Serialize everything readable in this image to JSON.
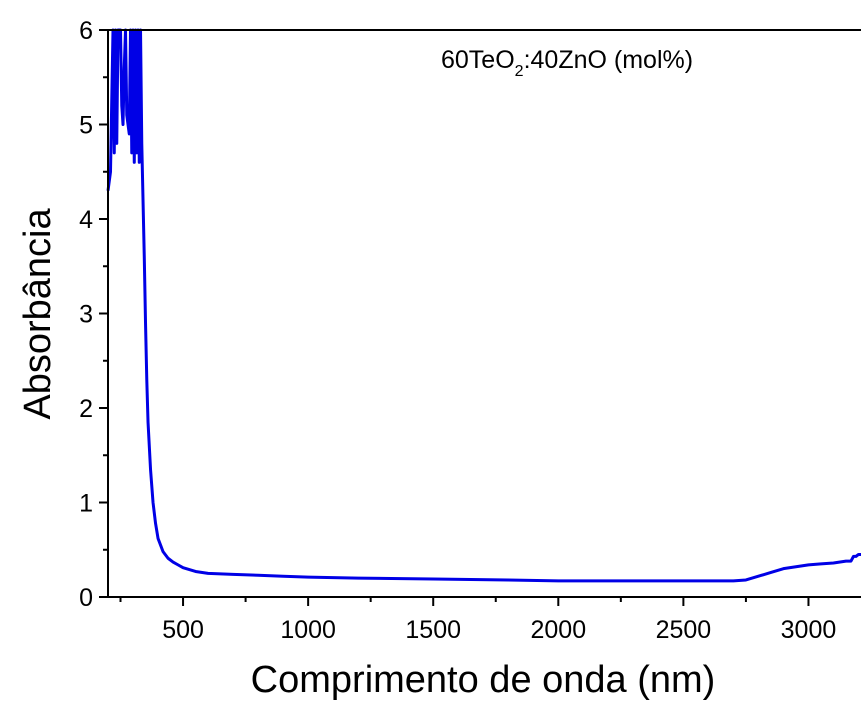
{
  "chart_data": {
    "type": "line",
    "xlabel": "Comprimento de onda (nm)",
    "ylabel": "Absorbância",
    "xlim": [
      200,
      3210
    ],
    "ylim": [
      0,
      6
    ],
    "xticks": [
      500,
      1000,
      1500,
      2000,
      2500,
      3000
    ],
    "yticks": [
      0,
      1,
      2,
      3,
      4,
      5,
      6
    ],
    "grid": false,
    "legend": "none",
    "annotation": {
      "main": "60TeO",
      "subscript": "2",
      "rest": ":40ZnO (mol%)"
    },
    "series": [
      {
        "color": "#0000e6",
        "x": [
          200,
          210,
          220,
          225,
          230,
          235,
          240,
          245,
          250,
          255,
          260,
          265,
          270,
          275,
          280,
          285,
          290,
          295,
          300,
          305,
          310,
          315,
          320,
          325,
          330,
          335,
          340,
          345,
          350,
          355,
          360,
          370,
          380,
          390,
          400,
          420,
          440,
          460,
          480,
          500,
          550,
          600,
          700,
          800,
          900,
          1000,
          1200,
          1500,
          1800,
          2000,
          2200,
          2500,
          2700,
          2750,
          2800,
          2850,
          2900,
          2950,
          3000,
          3050,
          3100,
          3150,
          3170,
          3180,
          3190,
          3200,
          3210
        ],
        "y": [
          4.3,
          4.5,
          6.0,
          4.7,
          6.0,
          4.8,
          6.0,
          6.0,
          6.0,
          5.2,
          5.0,
          5.6,
          6.0,
          5.1,
          5.0,
          4.9,
          6.0,
          4.7,
          6.0,
          4.6,
          6.0,
          4.7,
          6.0,
          4.6,
          6.0,
          4.8,
          4.2,
          3.6,
          2.9,
          2.3,
          1.85,
          1.35,
          1.0,
          0.78,
          0.62,
          0.48,
          0.41,
          0.37,
          0.34,
          0.31,
          0.27,
          0.25,
          0.24,
          0.23,
          0.22,
          0.21,
          0.2,
          0.19,
          0.18,
          0.17,
          0.17,
          0.17,
          0.17,
          0.18,
          0.22,
          0.26,
          0.3,
          0.32,
          0.34,
          0.35,
          0.36,
          0.38,
          0.38,
          0.43,
          0.43,
          0.45,
          0.45
        ]
      }
    ]
  }
}
